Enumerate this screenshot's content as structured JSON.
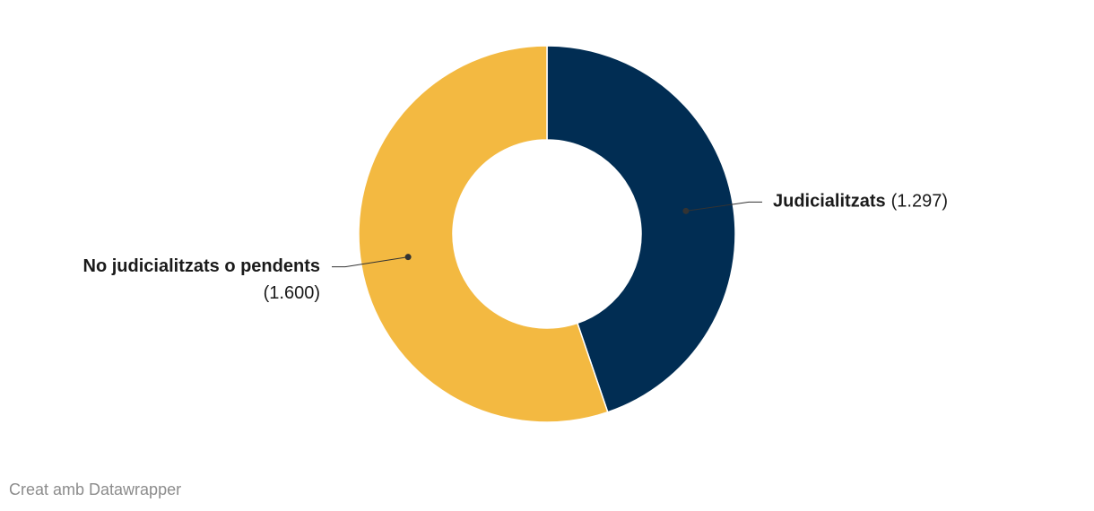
{
  "chart_data": {
    "type": "donut",
    "categories": [
      "Judicialitzats",
      "No judicialitzats o pendents"
    ],
    "values": [
      1297,
      1600
    ],
    "value_labels": [
      "(1.297)",
      "(1.600)"
    ],
    "colors": [
      "#012d53",
      "#f3b941"
    ],
    "credit": "Creat amb Datawrapper"
  }
}
